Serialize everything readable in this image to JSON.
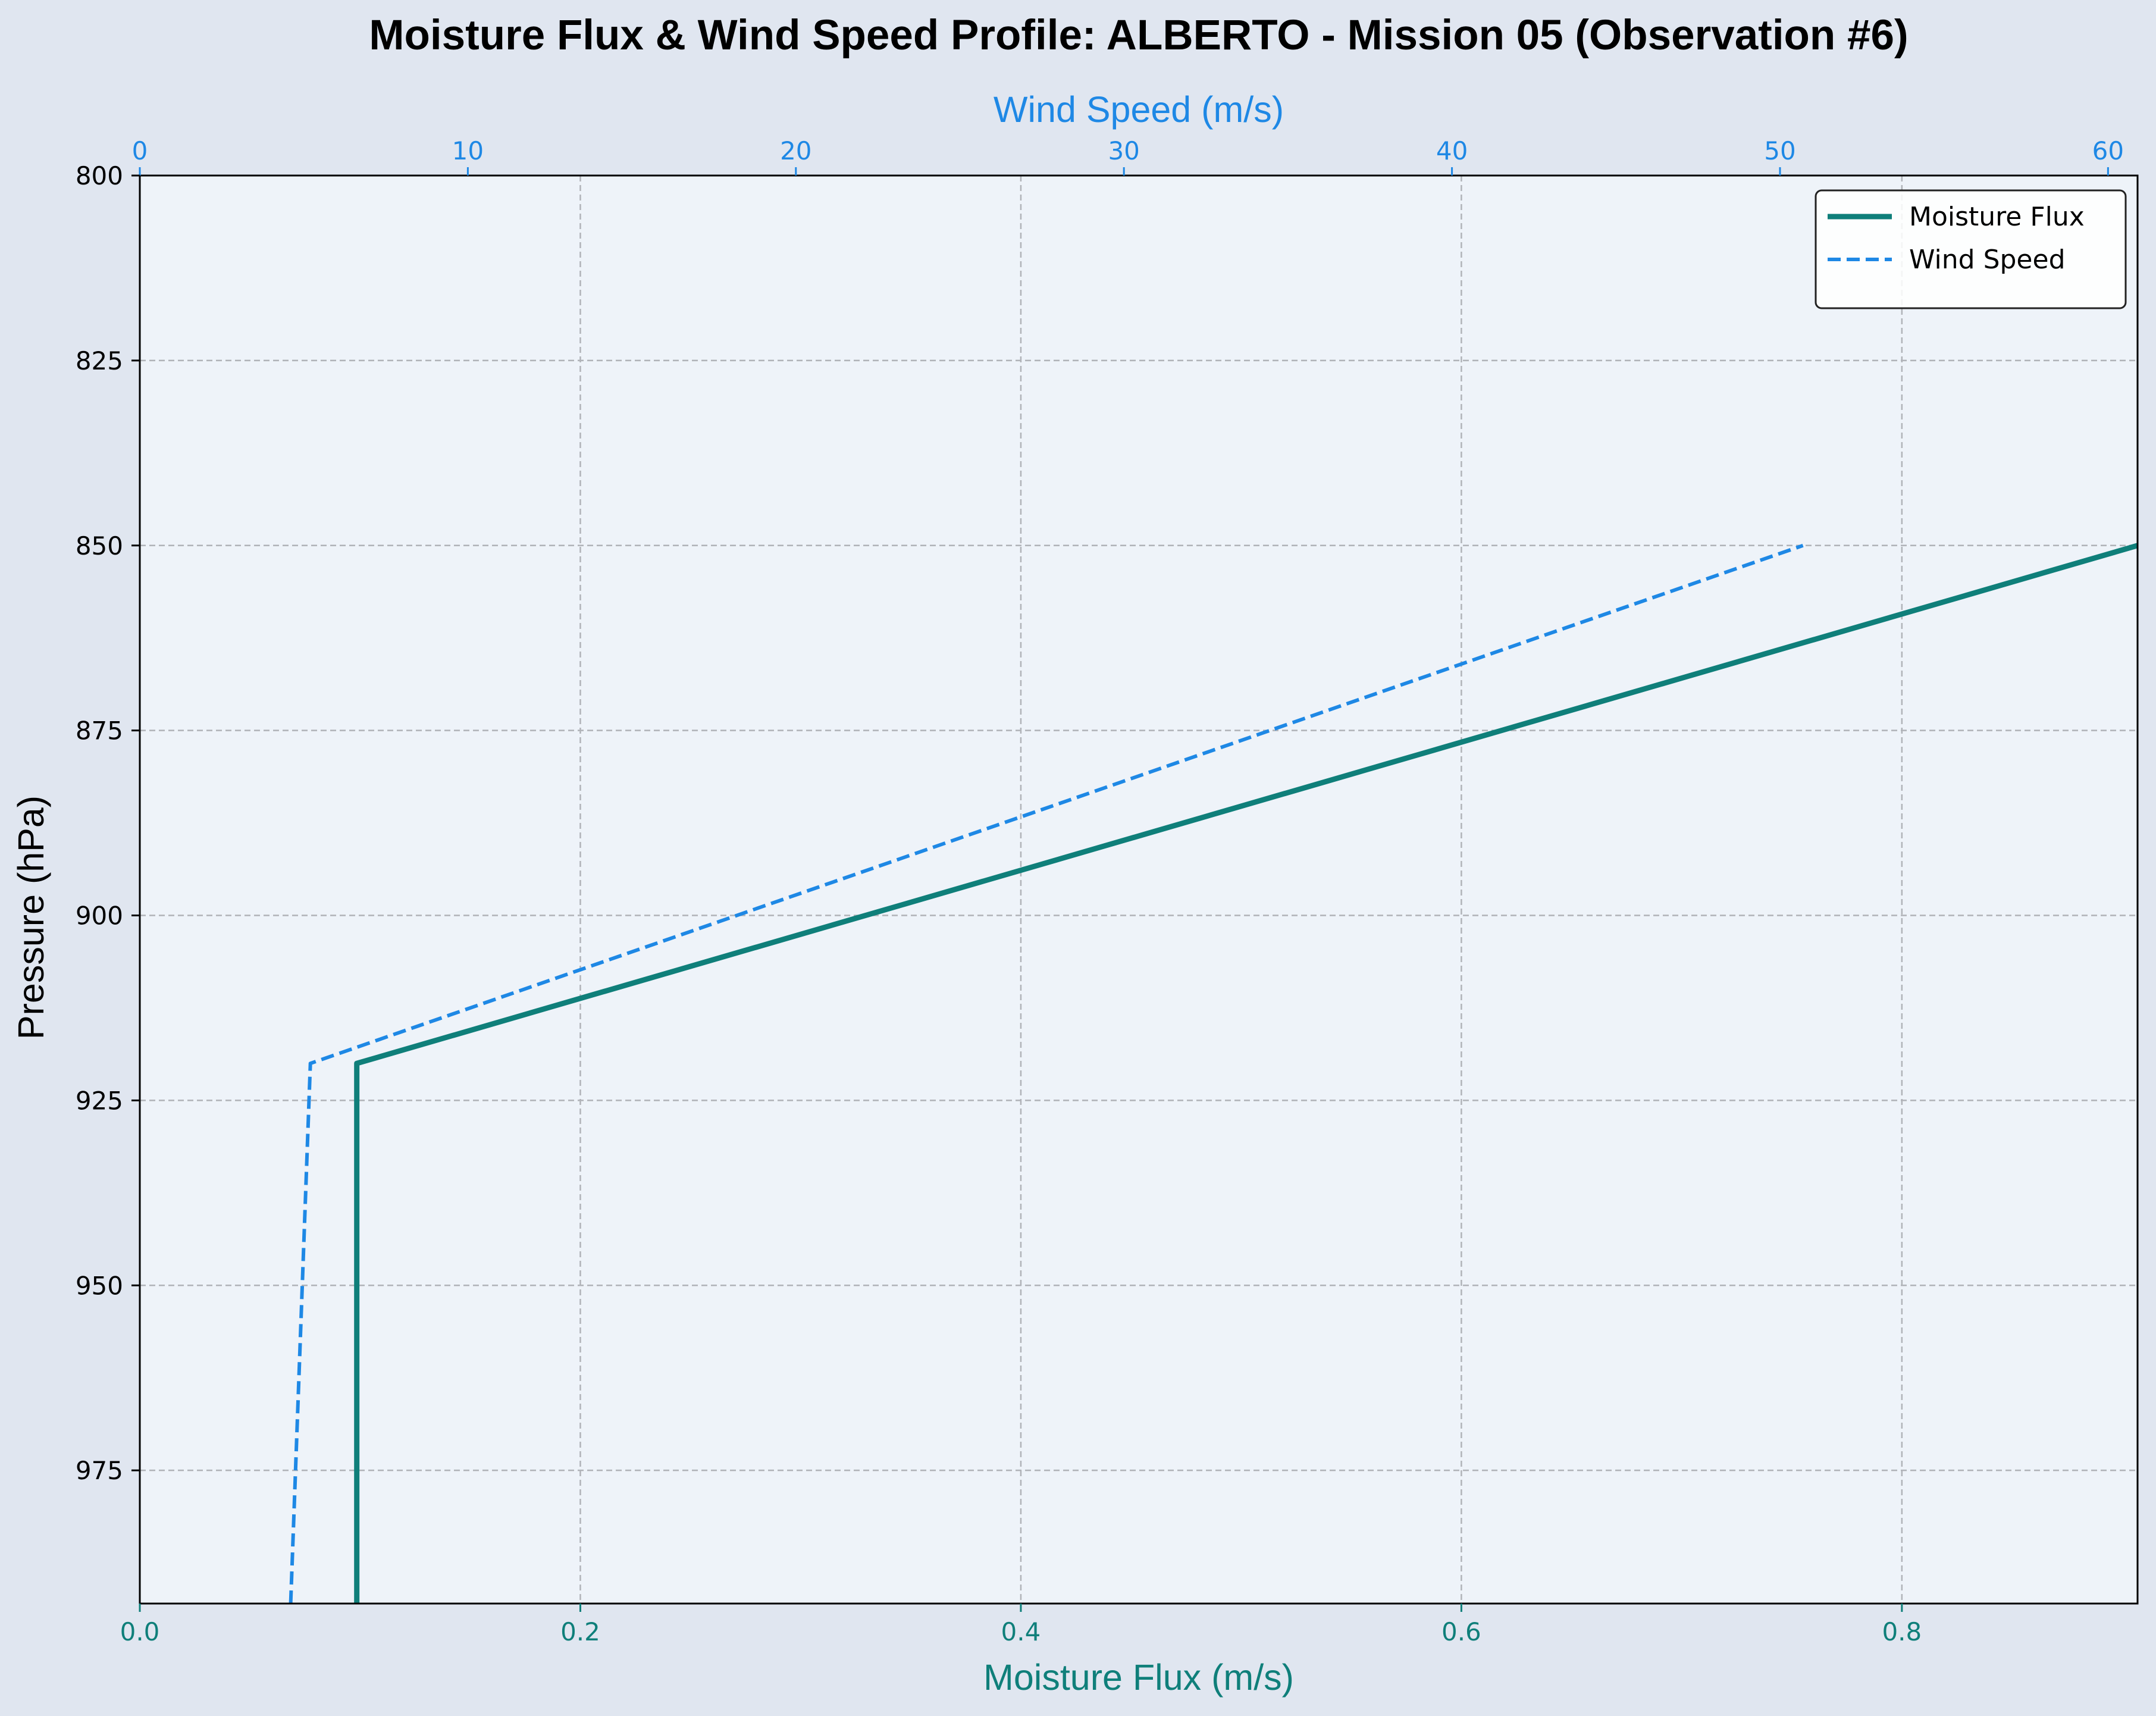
{
  "chart_data": {
    "type": "line",
    "title": "Moisture Flux & Wind Speed Profile: ALBERTO - Mission 05 (Observation #6)",
    "xlabel": "Moisture Flux (m/s)",
    "x2label": "Wind Speed (m/s)",
    "ylabel": "Pressure (hPa)",
    "xlim": [
      0,
      0.907
    ],
    "x2lim": [
      0,
      60.9
    ],
    "ylim": [
      993,
      800
    ],
    "y_inverted": true,
    "grid": true,
    "legend_position": "top-right",
    "xticks": [
      "0.0",
      "0.2",
      "0.4",
      "0.6",
      "0.8"
    ],
    "x2ticks": [
      "0",
      "10",
      "20",
      "30",
      "40",
      "50",
      "60"
    ],
    "yticks": [
      "800",
      "825",
      "850",
      "875",
      "900",
      "925",
      "950",
      "975"
    ],
    "series": [
      {
        "name": "Moisture Flux",
        "axis": "bottom",
        "color": "#0f7f7a",
        "style": "solid",
        "points": [
          [
            0.0985,
            993
          ],
          [
            0.0985,
            920
          ],
          [
            0.907,
            850
          ]
        ]
      },
      {
        "name": "Wind Speed",
        "axis": "top",
        "color": "#1e88e5",
        "style": "dashed",
        "points": [
          [
            4.6,
            993
          ],
          [
            5.2,
            920
          ],
          [
            50.7,
            850
          ]
        ]
      }
    ]
  },
  "colors": {
    "figure_bg": "#e0e6f0",
    "plot_bg": "#eef3f9",
    "grid": "#b0b3b8",
    "moisture_axis": "#0f7f7a",
    "wind_axis": "#1e88e5"
  }
}
